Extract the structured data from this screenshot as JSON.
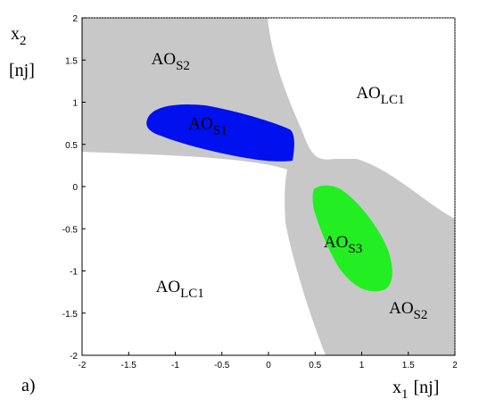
{
  "chart_data": {
    "type": "region-map",
    "xlim": [
      -2,
      2
    ],
    "ylim": [
      -2,
      2
    ],
    "x_ticks": [
      "-2",
      "-1.5",
      "-1",
      "-0.5",
      "0",
      "0.5",
      "1",
      "1.5",
      "2"
    ],
    "y_ticks": [
      "2",
      "1.5",
      "1",
      "0.5",
      "0",
      "-0.5",
      "-1",
      "-1.5",
      "-2"
    ],
    "x_label": {
      "var": "x",
      "sub": "1",
      "unit": "[nj]"
    },
    "y_label": {
      "var": "x",
      "sub": "2",
      "unit": "[nj]"
    },
    "panel_label": "a)",
    "colors": {
      "AO_S2": "#c8c8c8",
      "AO_S1": "#0010ee",
      "AO_S3": "#22ee22",
      "AO_LC1": "#ffffff"
    },
    "regions": [
      {
        "id": "s2",
        "base": "AO",
        "sub": "S2",
        "x": -1.05,
        "y": 1.45
      },
      {
        "id": "lc1-top",
        "base": "AO",
        "sub": "LC1",
        "x": 1.2,
        "y": 1.05
      },
      {
        "id": "s1",
        "base": "AO",
        "sub": "S1",
        "x": -0.65,
        "y": 0.68
      },
      {
        "id": "s3",
        "base": "AO",
        "sub": "S3",
        "x": 0.8,
        "y": -0.72
      },
      {
        "id": "lc1-bottom",
        "base": "AO",
        "sub": "LC1",
        "x": -0.95,
        "y": -1.25
      },
      {
        "id": "s2-bottom",
        "base": "AO",
        "sub": "S2",
        "x": 1.5,
        "y": -1.5
      }
    ]
  }
}
